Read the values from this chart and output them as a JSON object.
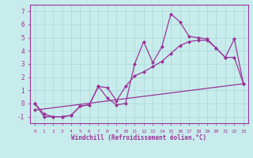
{
  "xlabel": "Windchill (Refroidissement éolien,°C)",
  "ylabel": "",
  "xlim": [
    -0.5,
    23.5
  ],
  "ylim": [
    -1.5,
    7.5
  ],
  "yticks": [
    -1,
    0,
    1,
    2,
    3,
    4,
    5,
    6,
    7
  ],
  "xticks": [
    0,
    1,
    2,
    3,
    4,
    5,
    6,
    7,
    8,
    9,
    10,
    11,
    12,
    13,
    14,
    15,
    16,
    17,
    18,
    19,
    20,
    21,
    22,
    23
  ],
  "background_color": "#c8ecec",
  "grid_color": "#aed8d8",
  "line_color": "#993399",
  "line1_x": [
    0,
    1,
    2,
    3,
    4,
    5,
    6,
    7,
    8,
    9,
    10,
    11,
    12,
    13,
    14,
    15,
    16,
    17,
    18,
    19,
    20,
    21,
    22,
    23
  ],
  "line1_y": [
    0.0,
    -0.8,
    -1.0,
    -1.0,
    -0.9,
    -0.2,
    -0.1,
    1.3,
    0.4,
    -0.1,
    0.0,
    3.0,
    4.7,
    3.1,
    4.3,
    6.8,
    6.2,
    5.1,
    5.0,
    4.9,
    4.2,
    3.5,
    4.9,
    1.5
  ],
  "line2_x": [
    0,
    1,
    2,
    3,
    4,
    5,
    6,
    7,
    8,
    9,
    10,
    11,
    12,
    13,
    14,
    15,
    16,
    17,
    18,
    19,
    20,
    21,
    22,
    23
  ],
  "line2_y": [
    0.0,
    -1.0,
    -1.0,
    -1.0,
    -0.9,
    -0.2,
    -0.1,
    1.3,
    1.2,
    0.2,
    1.3,
    2.1,
    2.4,
    2.8,
    3.2,
    3.8,
    4.4,
    4.7,
    4.8,
    4.8,
    4.2,
    3.5,
    3.5,
    1.5
  ],
  "line3_x": [
    0,
    23
  ],
  "line3_y": [
    -0.5,
    1.5
  ]
}
